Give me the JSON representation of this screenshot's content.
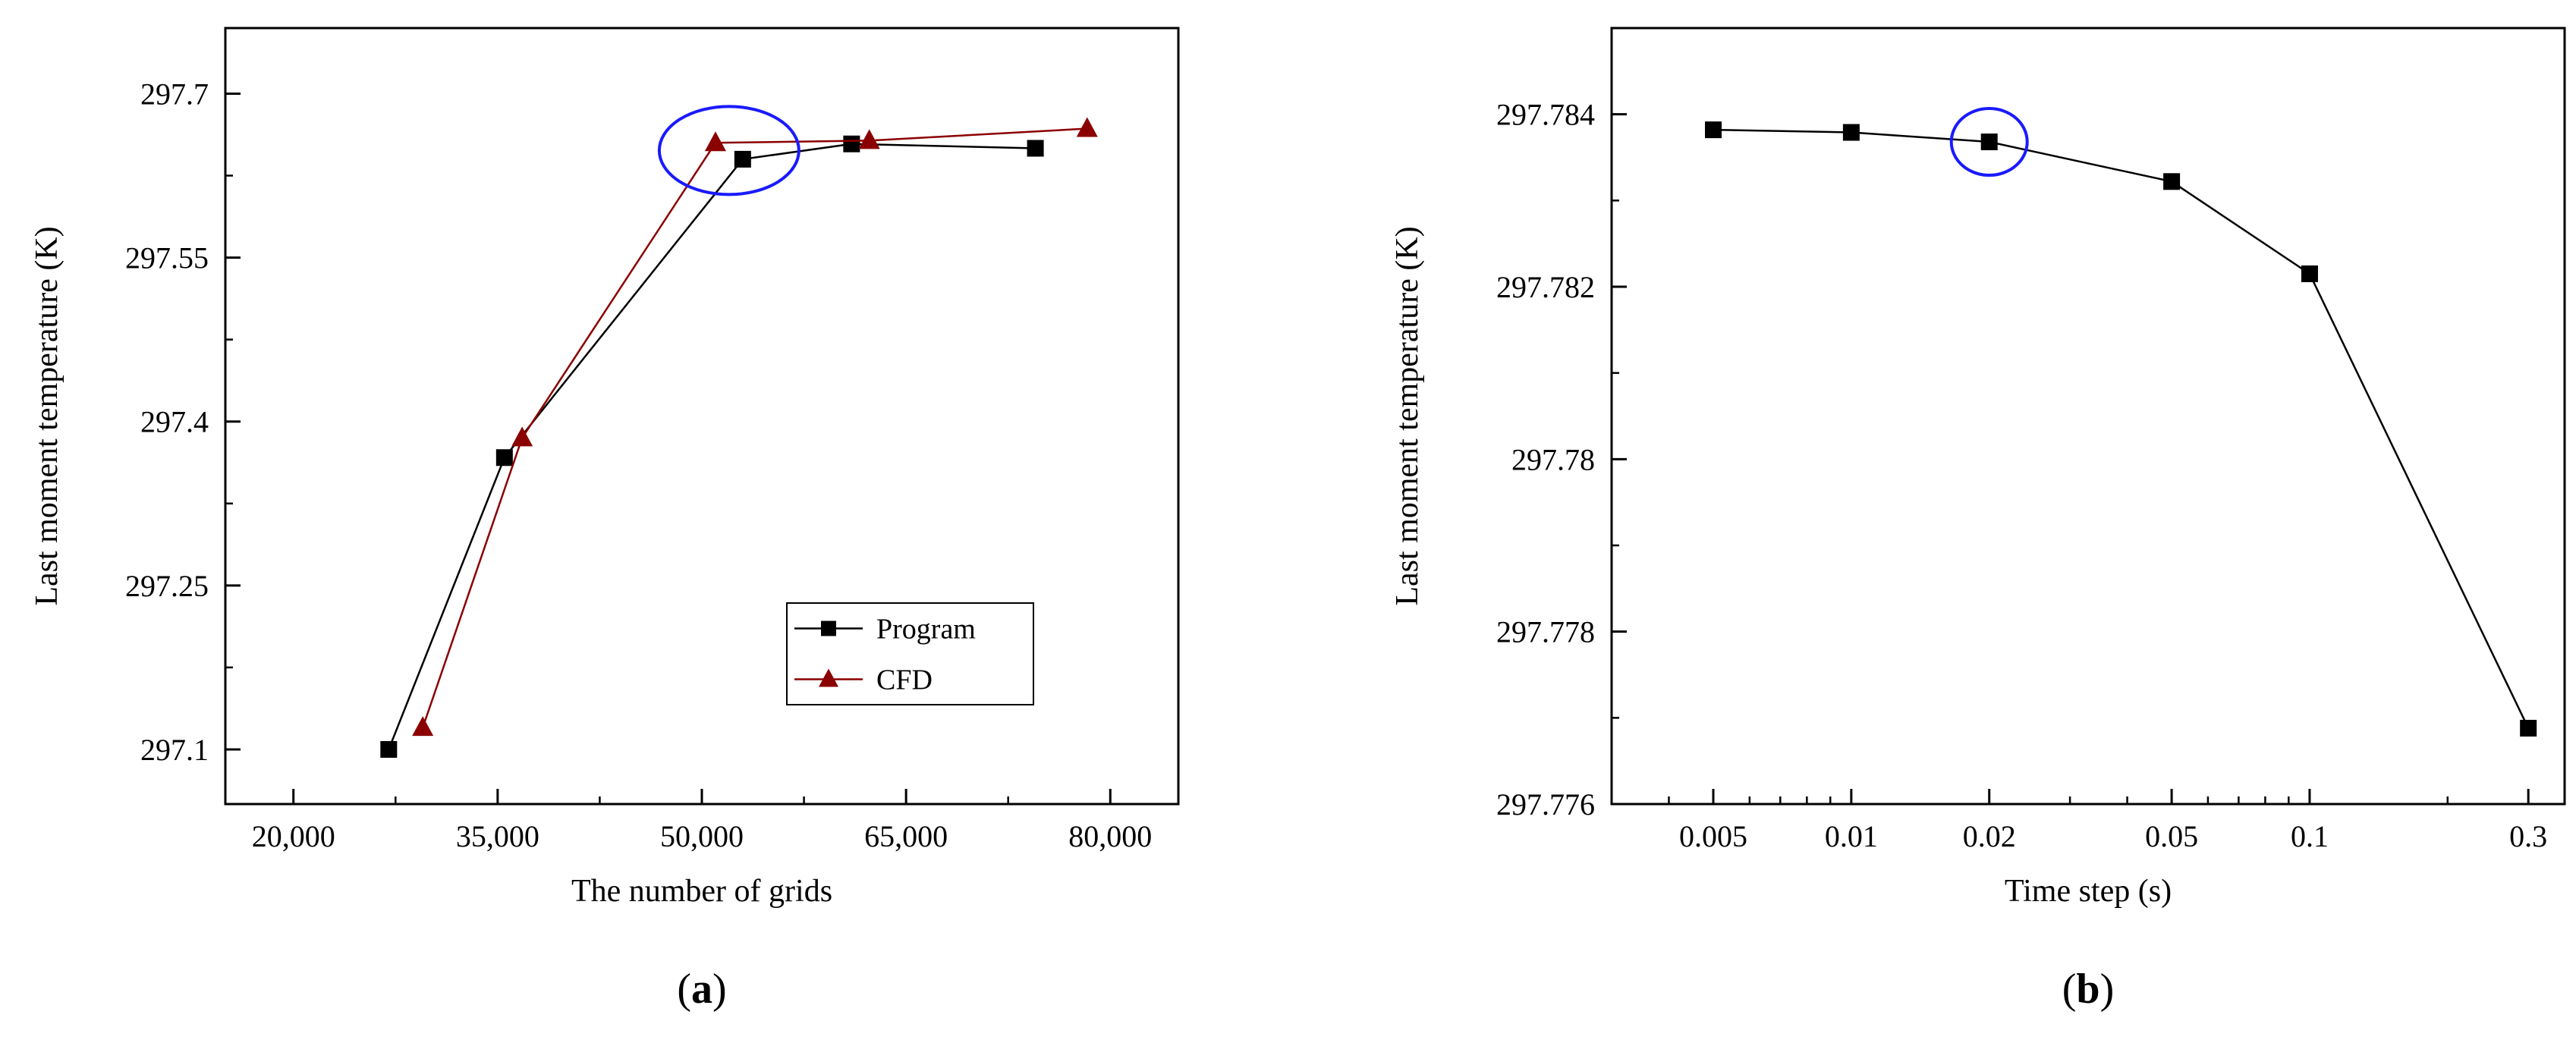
{
  "colors": {
    "program": "#000000",
    "cfd": "#8b0000",
    "highlight": "#1a1aff"
  },
  "chart_data": [
    {
      "type": "line",
      "panel_label": "(a)",
      "xlabel": "The number of grids",
      "ylabel": "Last moment temperature (K)",
      "xlim": [
        15000,
        85000
      ],
      "ylim": [
        297.05,
        297.76
      ],
      "xticks": [
        20000,
        35000,
        50000,
        65000,
        80000
      ],
      "xtick_labels": [
        "20,000",
        "35,000",
        "50,000",
        "65,000",
        "80,000"
      ],
      "yticks": [
        297.1,
        297.25,
        297.4,
        297.55,
        297.7
      ],
      "ytick_labels": [
        "297.1",
        "297.25",
        "297.4",
        "297.55",
        "297.7"
      ],
      "series": [
        {
          "name": "Program",
          "marker": "square",
          "x": [
            27000,
            35500,
            53000,
            61000,
            74500
          ],
          "y": [
            297.1,
            297.367,
            297.64,
            297.654,
            297.65
          ]
        },
        {
          "name": "CFD",
          "marker": "triangle",
          "x": [
            29500,
            36800,
            51000,
            62300,
            78300
          ],
          "y": [
            297.12,
            297.385,
            297.655,
            297.657,
            297.668
          ]
        }
      ],
      "legend": {
        "position": "lower-right",
        "entries": [
          "Program",
          "CFD"
        ]
      },
      "annotation": {
        "type": "ellipse",
        "around": [
          52000,
          297.648
        ]
      }
    },
    {
      "type": "line",
      "panel_label": "(b)",
      "xlabel": "Time step (s)",
      "ylabel": "Last moment temperature (K)",
      "xscale": "log",
      "xlim": [
        0.003,
        0.36
      ],
      "ylim": [
        297.776,
        297.785
      ],
      "xticks": [
        0.005,
        0.01,
        0.02,
        0.05,
        0.1,
        0.3
      ],
      "xtick_labels": [
        "0.005",
        "0.01",
        "0.02",
        "0.05",
        "0.1",
        "0.3"
      ],
      "yticks": [
        297.776,
        297.778,
        297.78,
        297.782,
        297.784
      ],
      "ytick_labels": [
        "297.776",
        "297.778",
        "297.78",
        "297.782",
        "297.784"
      ],
      "series": [
        {
          "name": "Program",
          "marker": "square",
          "x": [
            0.005,
            0.01,
            0.02,
            0.05,
            0.1,
            0.3
          ],
          "y": [
            297.78382,
            297.78379,
            297.78368,
            297.78322,
            297.78215,
            297.77688
          ]
        }
      ],
      "annotation": {
        "type": "ellipse",
        "around": [
          0.02,
          297.78368
        ]
      }
    }
  ]
}
